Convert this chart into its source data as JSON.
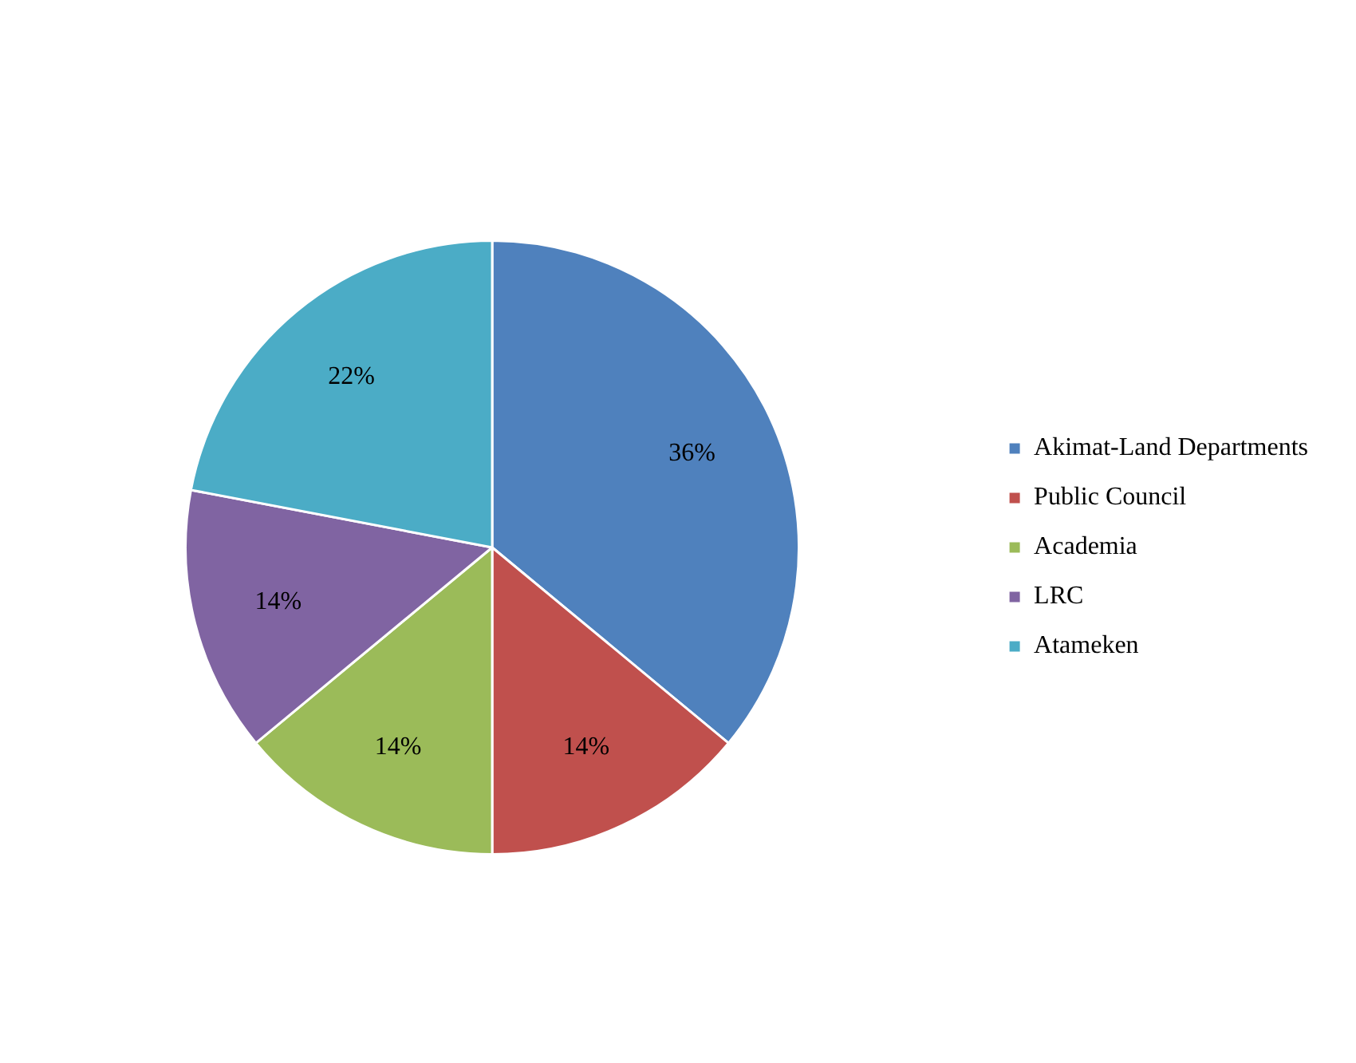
{
  "chart_data": {
    "type": "pie",
    "categories": [
      "Akimat-Land Departments",
      "Public Council",
      "Academia",
      "LRC",
      "Atameken"
    ],
    "values": [
      36,
      14,
      14,
      14,
      22
    ],
    "colors": [
      "#4f81bd",
      "#c0504d",
      "#9bbb59",
      "#8064a2",
      "#4bacc6"
    ],
    "value_labels": [
      "36%",
      "14%",
      "14%",
      "14%",
      "22%"
    ],
    "legend": "right"
  }
}
